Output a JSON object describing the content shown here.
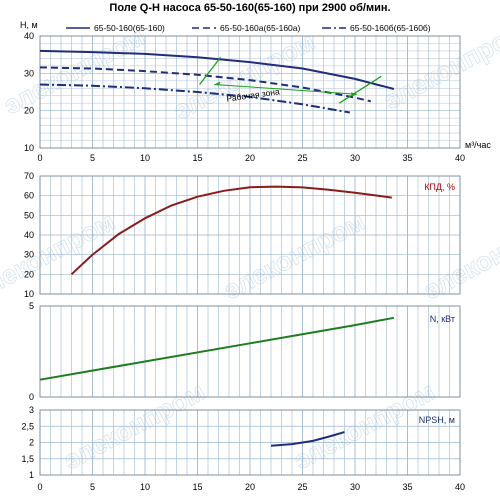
{
  "title": "Поле Q-H насоса 65-50-160(65-160) при 2900 об/мин.",
  "colors": {
    "curve_h": "#1f2d7a",
    "efficiency": "#8b1a1a",
    "power": "#1e7d1e",
    "npsh": "#1f2d7a",
    "work_zone": "#1aa31a",
    "grid": "#9fb8cf",
    "label_red": "#c00000",
    "label_blue": "#1f2d7a"
  },
  "watermark": "элеконпром",
  "chart_data": [
    {
      "id": "qh",
      "type": "line",
      "ylabel": "H, м",
      "xlabel": "м³/час",
      "xlim": [
        0,
        40
      ],
      "ylim": [
        10,
        40
      ],
      "xticks": [
        "0",
        "5",
        "10",
        "15",
        "20",
        "25",
        "30",
        "35",
        "40"
      ],
      "yticks": [
        "10",
        "20",
        "30",
        "40"
      ],
      "work_zone_label": "Рабочая зона",
      "series": [
        {
          "name": "65-50-160(65-160)",
          "style": "solid",
          "x": [
            0,
            5,
            10,
            15,
            20,
            25,
            30,
            33.7
          ],
          "y": [
            36,
            35.7,
            35.2,
            34.3,
            33,
            31.3,
            28.5,
            25.8
          ]
        },
        {
          "name": "65-50-160a(65-160a)",
          "style": "dashed",
          "x": [
            0,
            5,
            10,
            15,
            20,
            25,
            30,
            31.5
          ],
          "y": [
            31.6,
            31.3,
            30.6,
            29.6,
            28.2,
            26.2,
            23.5,
            22.5
          ]
        },
        {
          "name": "65-50-160б(65-160б)",
          "style": "dashdot",
          "x": [
            0,
            5,
            10,
            15,
            20,
            25,
            29.5
          ],
          "y": [
            27,
            26.7,
            26,
            25,
            23.7,
            21.7,
            19.5
          ]
        }
      ]
    },
    {
      "id": "eff",
      "type": "line",
      "label": "КПД, %",
      "xlim": [
        0,
        40
      ],
      "ylim": [
        10,
        70
      ],
      "yticks": [
        "10",
        "20",
        "30",
        "40",
        "50",
        "60",
        "70"
      ],
      "series": [
        {
          "x": [
            3,
            5,
            7.5,
            10,
            12.5,
            15,
            17.5,
            20,
            22.5,
            25,
            27.5,
            30,
            33.5
          ],
          "y": [
            20,
            30,
            40.5,
            48.5,
            55,
            59.5,
            62.5,
            64.3,
            64.6,
            64.2,
            63,
            61.5,
            59
          ]
        }
      ]
    },
    {
      "id": "power",
      "type": "line",
      "label": "N, кВт",
      "xlim": [
        0,
        40
      ],
      "ylim": [
        0,
        5
      ],
      "yticks": [
        "0",
        "5"
      ],
      "series": [
        {
          "x": [
            0,
            10,
            20,
            30,
            33.7
          ],
          "y": [
            0.95,
            1.95,
            2.95,
            3.95,
            4.35
          ]
        }
      ]
    },
    {
      "id": "npsh",
      "type": "line",
      "label": "NPSH, м",
      "xlim": [
        0,
        40
      ],
      "ylim": [
        1,
        3
      ],
      "xticks": [
        "0",
        "5",
        "10",
        "15",
        "20",
        "25",
        "30",
        "35",
        "40"
      ],
      "yticks": [
        "1",
        "1,5",
        "2",
        "2,5",
        "3"
      ],
      "series": [
        {
          "x": [
            22,
            24,
            26,
            27.5,
            29
          ],
          "y": [
            1.9,
            1.95,
            2.05,
            2.18,
            2.32
          ]
        }
      ]
    }
  ]
}
